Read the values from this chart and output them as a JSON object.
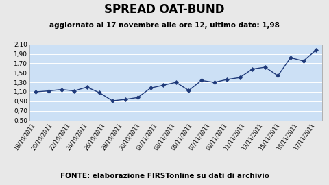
{
  "title": "SPREAD OAT-BUND",
  "subtitle": "aggiornato al 17 novembre alle ore 12, ultimo dato: 1,98",
  "footer": "FONTE: elaborazione FIRSTonline su dati di archivio",
  "x_labels": [
    "18/10/2011",
    "20/10/2011",
    "22/10/2011",
    "24/10/2011",
    "26/10/2011",
    "28/10/2011",
    "30/10/2011",
    "01/11/2011",
    "03/11/2011",
    "05/11/2011",
    "07/11/2011",
    "09/11/2011",
    "11/11/2011",
    "13/11/2011",
    "15/11/2011",
    "16/11/2011",
    "17/11/2011"
  ],
  "y_values": [
    1.1,
    1.12,
    1.15,
    1.12,
    1.2,
    1.08,
    0.91,
    0.94,
    0.98,
    1.18,
    1.24,
    1.3,
    1.13,
    1.34,
    1.3,
    1.36,
    1.4,
    1.58,
    1.62,
    1.44,
    1.82,
    1.75,
    1.98
  ],
  "ylim": [
    0.5,
    2.1
  ],
  "yticks": [
    0.5,
    0.7,
    0.9,
    1.1,
    1.3,
    1.5,
    1.7,
    1.9,
    2.1
  ],
  "line_color": "#1f3a7a",
  "marker_color": "#1f3a7a",
  "plot_bg_color": "#cce0f5",
  "fig_bg_color": "#e8e8e8",
  "title_fontsize": 12,
  "subtitle_fontsize": 7.5,
  "footer_fontsize": 7.5,
  "tick_fontsize": 6.5,
  "xtick_fontsize": 5.8
}
